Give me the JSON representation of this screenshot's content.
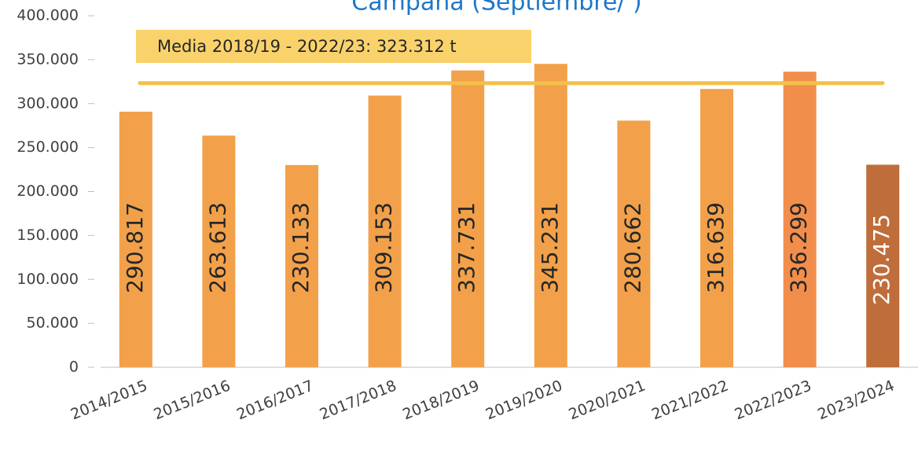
{
  "chart_data": {
    "type": "bar",
    "title": "Campaña (Septiembre/ )",
    "categories": [
      "2014/2015",
      "2015/2016",
      "2016/2017",
      "2017/2018",
      "2018/2019",
      "2019/2020",
      "2020/2021",
      "2021/2022",
      "2022/2023",
      "2023/2024"
    ],
    "values": [
      290817,
      263613,
      230133,
      309153,
      337731,
      345231,
      280662,
      316639,
      336299,
      230475
    ],
    "value_labels": [
      "290.817",
      "263.613",
      "230.133",
      "309.153",
      "337.731",
      "345.231",
      "280.662",
      "316.639",
      "336.299",
      "230.475"
    ],
    "colors": [
      "#f2a14a",
      "#f2a14a",
      "#f2a14a",
      "#f2a14a",
      "#f2a14a",
      "#f2a14a",
      "#f2a14a",
      "#f2a14a",
      "#f28e4c",
      "#bf6d3a"
    ],
    "ylim": [
      0,
      400000
    ],
    "yticks": [
      0,
      {
        "value": 50000,
        "label": "50.000"
      },
      {
        "value": 100000,
        "label": "100.000"
      },
      {
        "value": 150000,
        "label": "150.000"
      },
      {
        "value": 200000,
        "label": "200.000"
      },
      {
        "value": 250000,
        "label": "250.000"
      },
      {
        "value": 300000,
        "label": "300.000"
      },
      {
        "value": 350000,
        "label": "350.000"
      },
      {
        "value": 400000,
        "label": "400.000"
      }
    ],
    "reference_line": {
      "value": 323312,
      "label": "Media 2018/19 - 2022/23: 323.312 t",
      "color": "#f2c14a"
    }
  }
}
